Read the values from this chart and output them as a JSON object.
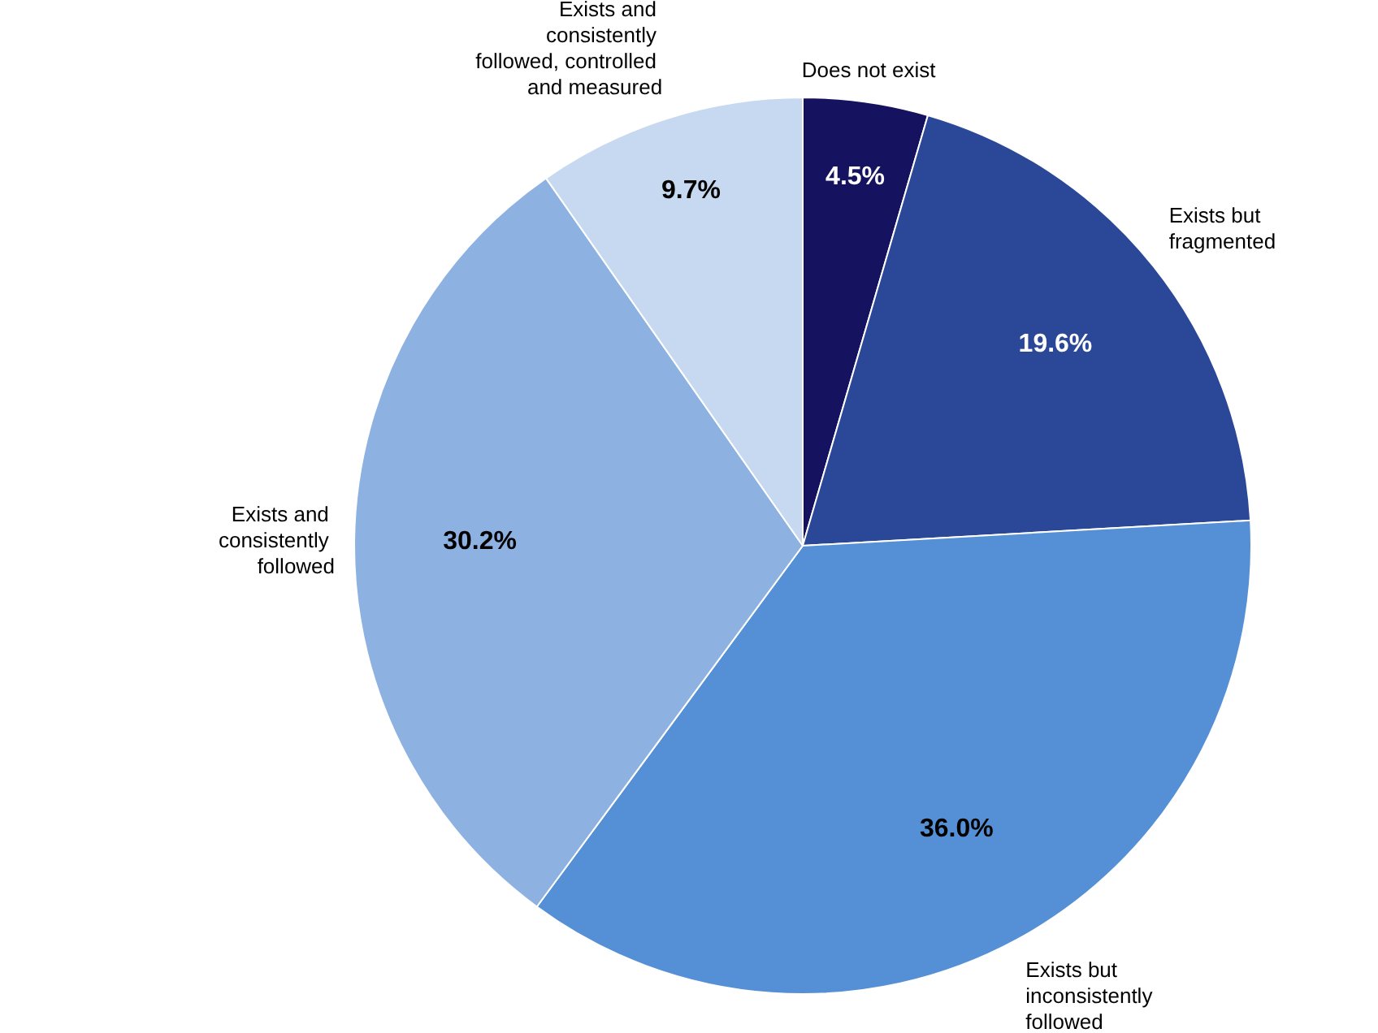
{
  "chart_data": {
    "type": "pie",
    "categories": [
      "Does not exist",
      "Exists but fragmented",
      "Exists but inconsistently followed",
      "Exists and consistently followed",
      "Exists and consistently followed, controlled and measured"
    ],
    "values": [
      4.5,
      19.6,
      36.0,
      30.2,
      9.7
    ],
    "value_labels": [
      "4.5%",
      "19.6%",
      "36.0%",
      "30.2%",
      "9.7%"
    ],
    "colors": [
      "#15125f",
      "#2b4797",
      "#5590d6",
      "#8db2e2",
      "#c7d9f0"
    ],
    "legend": false
  }
}
